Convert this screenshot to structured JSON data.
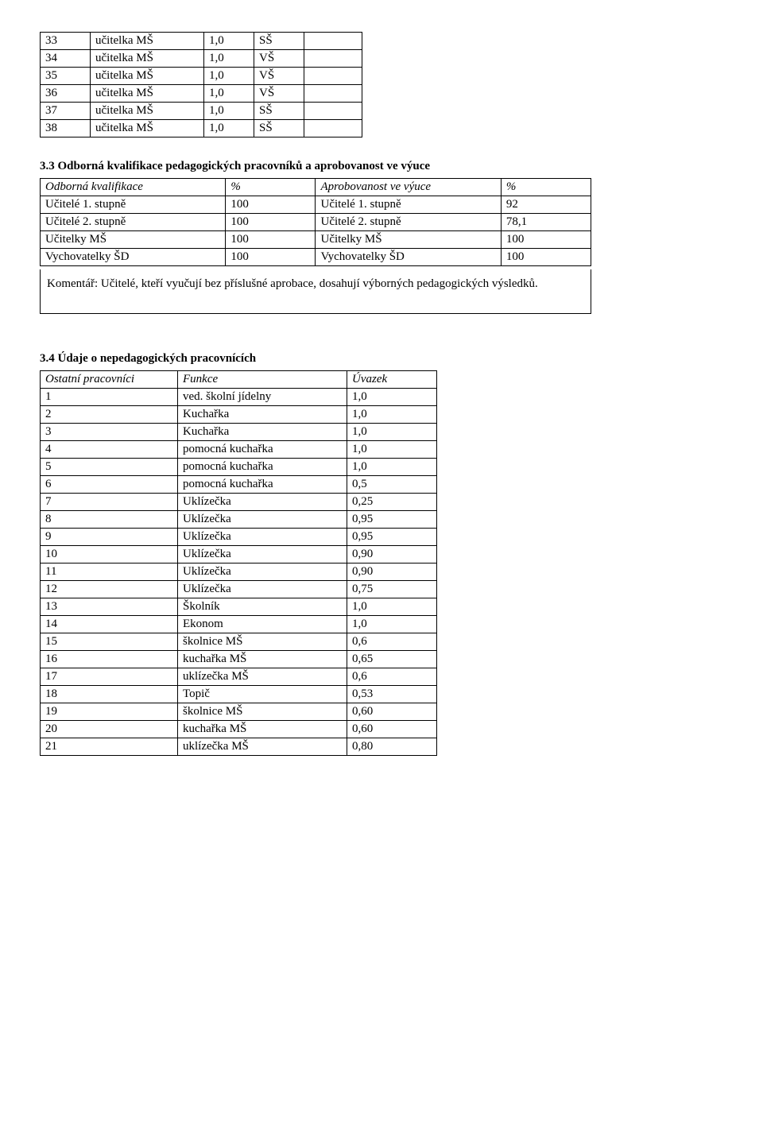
{
  "table1": {
    "rows": [
      [
        "33",
        "učitelka MŠ",
        "1,0",
        "SŠ",
        ""
      ],
      [
        "34",
        "učitelka MŠ",
        "1,0",
        "VŠ",
        ""
      ],
      [
        "35",
        "učitelka MŠ",
        "1,0",
        "VŠ",
        ""
      ],
      [
        "36",
        "učitelka MŠ",
        "1,0",
        "VŠ",
        ""
      ],
      [
        "37",
        "učitelka MŠ",
        "1,0",
        "SŠ",
        ""
      ],
      [
        "38",
        "učitelka MŠ",
        "1,0",
        "SŠ",
        ""
      ]
    ]
  },
  "section2": {
    "title": "3.3 Odborná kvalifikace pedagogických pracovníků a aprobovanost ve výuce",
    "header": [
      "Odborná kvalifikace",
      "%",
      "Aprobovanost ve výuce",
      "%"
    ],
    "rows": [
      [
        "Učitelé 1. stupně",
        "100",
        "Učitelé 1. stupně",
        "92"
      ],
      [
        "Učitelé 2. stupně",
        "100",
        "Učitelé 2. stupně",
        "78,1"
      ],
      [
        "Učitelky MŠ",
        "100",
        "Učitelky MŠ",
        "100"
      ],
      [
        "Vychovatelky ŠD",
        "100",
        "Vychovatelky ŠD",
        "100"
      ]
    ],
    "comment": "Komentář: Učitelé, kteří vyučují bez příslušné aprobace, dosahují výborných pedagogických výsledků."
  },
  "section3": {
    "title": "3.4 Údaje o nepedagogických pracovnících",
    "header": [
      "Ostatní pracovníci",
      "Funkce",
      "Úvazek"
    ],
    "rows": [
      [
        "1",
        "ved. školní jídelny",
        "1,0"
      ],
      [
        "2",
        "Kuchařka",
        "1,0"
      ],
      [
        "3",
        "Kuchařka",
        "1,0"
      ],
      [
        "4",
        "pomocná kuchařka",
        "1,0"
      ],
      [
        "5",
        "pomocná kuchařka",
        "1,0"
      ],
      [
        "6",
        "pomocná kuchařka",
        "0,5"
      ],
      [
        "7",
        "Uklízečka",
        "0,25"
      ],
      [
        "8",
        "Uklízečka",
        "0,95"
      ],
      [
        "9",
        "Uklízečka",
        "0,95"
      ],
      [
        "10",
        "Uklízečka",
        "0,90"
      ],
      [
        "11",
        "Uklízečka",
        "0,90"
      ],
      [
        "12",
        "Uklízečka",
        "0,75"
      ],
      [
        "13",
        "Školník",
        "1,0"
      ],
      [
        "14",
        "Ekonom",
        "1,0"
      ],
      [
        "15",
        "školnice MŠ",
        "0,6"
      ],
      [
        "16",
        "kuchařka MŠ",
        "0,65"
      ],
      [
        "17",
        "uklízečka MŠ",
        "0,6"
      ],
      [
        "18",
        "Topič",
        "0,53"
      ],
      [
        "19",
        "školnice MŠ",
        "0,60"
      ],
      [
        "20",
        "kuchařka MŠ",
        "0,60"
      ],
      [
        "21",
        "uklízečka MŠ",
        "0,80"
      ]
    ]
  }
}
